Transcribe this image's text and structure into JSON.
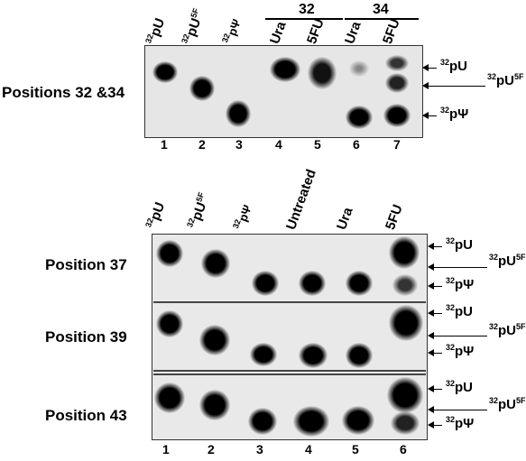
{
  "top": {
    "row_label": "Positions 32 &34",
    "group_labels": [
      "32",
      "34"
    ],
    "lane_headers": [
      "pU",
      "pU",
      "pΨ",
      "Ura",
      "5FU",
      "Ura",
      "5FU"
    ],
    "lane_numbers": [
      "1",
      "2",
      "3",
      "4",
      "5",
      "6",
      "7"
    ],
    "side_labels": [
      "pU",
      "pU",
      "pΨ"
    ]
  },
  "bottom": {
    "lane_headers": [
      "pU",
      "pU",
      "pΨ",
      "Untreated",
      "Ura",
      "5FU"
    ],
    "lane_numbers": [
      "1",
      "2",
      "3",
      "4",
      "5",
      "6"
    ],
    "rows": [
      {
        "label": "Position 37",
        "side_labels": [
          "pU",
          "pU",
          "pΨ"
        ]
      },
      {
        "label": "Position 39",
        "side_labels": [
          "pU",
          "pU",
          "pΨ"
        ]
      },
      {
        "label": "Position 43",
        "side_labels": [
          "pU",
          "pU",
          "pΨ"
        ]
      }
    ]
  },
  "iso": {
    "p32": "32",
    "f5": "5F"
  }
}
